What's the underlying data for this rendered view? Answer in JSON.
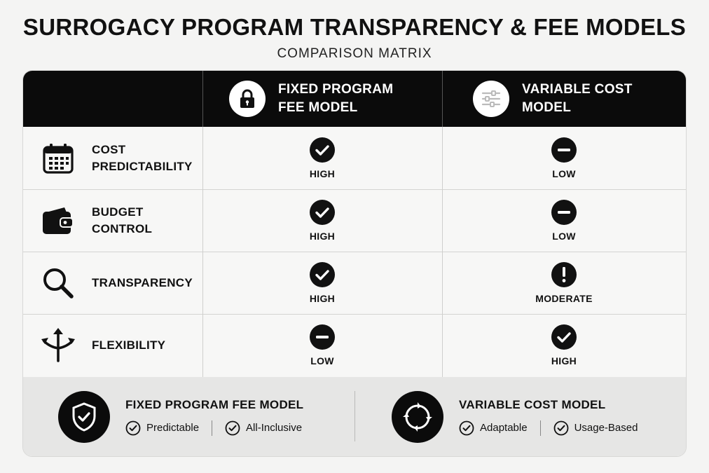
{
  "title": "SURROGACY PROGRAM TRANSPARENCY & FEE MODELS",
  "subtitle": "COMPARISON MATRIX",
  "columns": [
    {
      "label_line1": "FIXED PROGRAM",
      "label_line2": "FEE MODEL",
      "icon": "lock-icon"
    },
    {
      "label_line1": "VARIABLE COST",
      "label_line2": "MODEL",
      "icon": "sliders-icon"
    }
  ],
  "rows": [
    {
      "label_line1": "COST",
      "label_line2": "PREDICTABILITY",
      "icon": "calendar-icon",
      "fixed": {
        "rating": "HIGH",
        "mark": "check"
      },
      "variable": {
        "rating": "LOW",
        "mark": "minus"
      }
    },
    {
      "label_line1": "BUDGET",
      "label_line2": "CONTROL",
      "icon": "wallet-icon",
      "fixed": {
        "rating": "HIGH",
        "mark": "check"
      },
      "variable": {
        "rating": "LOW",
        "mark": "minus"
      }
    },
    {
      "label_line1": "TRANSPARENCY",
      "label_line2": "",
      "icon": "magnifier-icon",
      "fixed": {
        "rating": "HIGH",
        "mark": "check"
      },
      "variable": {
        "rating": "MODERATE",
        "mark": "exclamation"
      }
    },
    {
      "label_line1": "FLEXIBILITY",
      "label_line2": "",
      "icon": "split-arrows-icon",
      "fixed": {
        "rating": "LOW",
        "mark": "minus"
      },
      "variable": {
        "rating": "HIGH",
        "mark": "check"
      }
    }
  ],
  "footer": [
    {
      "title": "FIXED PROGRAM FEE MODEL",
      "icon": "shield-check-icon",
      "tags": [
        "Predictable",
        "All-Inclusive"
      ]
    },
    {
      "title": "VARIABLE COST MODEL",
      "icon": "cycle-target-icon",
      "tags": [
        "Adaptable",
        "Usage-Based"
      ]
    }
  ],
  "colors": {
    "header_bg": "#0b0b0b",
    "page_bg": "#f4f4f3",
    "footer_bg": "#e6e6e5",
    "mark": "#111111"
  }
}
